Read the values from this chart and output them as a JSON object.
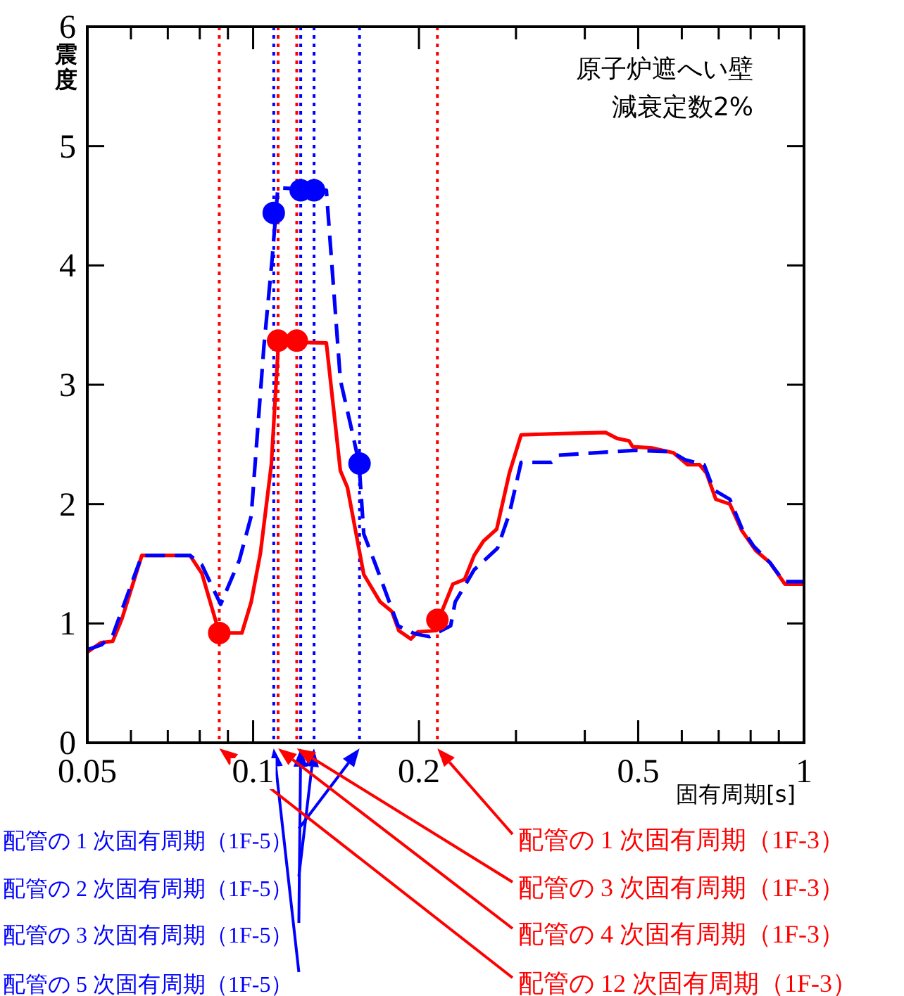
{
  "chart_data": {
    "type": "line",
    "title": "原子炉遮へい壁",
    "subtitle": "減衰定数2%",
    "xlabel": "固有周期[s]",
    "ylabel": "震度",
    "log": "x",
    "legend": false,
    "grid": false,
    "xlim": [
      0.05,
      1
    ],
    "ylim": [
      0,
      6
    ],
    "xticks": [
      0.05,
      {
        "value": 0.06,
        "label": null
      },
      {
        "value": 0.07,
        "label": null
      },
      {
        "value": 0.08,
        "label": null
      },
      {
        "value": 0.09,
        "label": null
      },
      0.1,
      0.2,
      {
        "value": 0.3,
        "label": null
      },
      {
        "value": 0.4,
        "label": null
      },
      0.5,
      {
        "value": 0.6,
        "label": null
      },
      {
        "value": 0.7,
        "label": null
      },
      {
        "value": 0.8,
        "label": null
      },
      {
        "value": 0.9,
        "label": null
      },
      1
    ],
    "yticks": [
      0,
      1,
      2,
      3,
      4,
      5,
      6
    ],
    "series": [
      {
        "type": "line",
        "color": "#ff0000",
        "line_style": "solid",
        "marker": "none",
        "x": [
          0.05,
          0.053,
          0.0556,
          0.0578,
          0.0628,
          0.0768,
          0.0807,
          0.0868,
          0.0954,
          0.0992,
          0.1031,
          0.1079,
          0.1112,
          0.1358,
          0.144,
          0.1483,
          0.1588,
          0.1701,
          0.1786,
          0.1839,
          0.1933,
          0.1991,
          0.2152,
          0.2174,
          0.2305,
          0.2421,
          0.2519,
          0.2619,
          0.2768,
          0.2918,
          0.3065,
          0.355,
          0.4363,
          0.458,
          0.4812,
          0.4886,
          0.5306,
          0.5795,
          0.6149,
          0.6461,
          0.6651,
          0.6917,
          0.7335,
          0.7706,
          0.8174,
          0.867,
          0.9229,
          1
        ],
        "values": [
          0.76,
          0.84,
          0.85,
          1.04,
          1.57,
          1.57,
          1.42,
          0.92,
          0.92,
          1.18,
          1.59,
          2.33,
          3.36,
          3.35,
          2.28,
          2.14,
          1.41,
          1.18,
          1.1,
          0.94,
          0.87,
          0.93,
          0.94,
          1.04,
          1.33,
          1.37,
          1.57,
          1.69,
          1.79,
          2.26,
          2.58,
          2.59,
          2.6,
          2.55,
          2.53,
          2.48,
          2.47,
          2.43,
          2.33,
          2.33,
          2.26,
          2.04,
          2.0,
          1.78,
          1.61,
          1.51,
          1.33,
          1.33
        ]
      },
      {
        "type": "line",
        "color": "#0000ff",
        "line_style": "dashed",
        "marker": "none",
        "x": [
          0.05,
          0.053,
          0.0556,
          0.0628,
          0.0768,
          0.0807,
          0.0873,
          0.0944,
          0.0992,
          0.1046,
          0.1083,
          0.11,
          0.1109,
          0.1358,
          0.144,
          0.1512,
          0.1557,
          0.1588,
          0.1669,
          0.1833,
          0.1951,
          0.203,
          0.209,
          0.2283,
          0.2327,
          0.2519,
          0.2777,
          0.2918,
          0.3065,
          0.3481,
          0.3585,
          0.4906,
          0.5741,
          0.6091,
          0.6586,
          0.6853,
          0.7335,
          0.7706,
          0.8093,
          0.867,
          0.9196,
          1
        ],
        "values": [
          0.78,
          0.82,
          0.9,
          1.57,
          1.57,
          1.49,
          1.16,
          1.53,
          1.9,
          3.32,
          4.06,
          4.45,
          4.65,
          4.63,
          3.04,
          2.61,
          2.34,
          1.75,
          1.49,
          0.98,
          0.92,
          0.9,
          0.89,
          0.98,
          1.18,
          1.45,
          1.63,
          1.92,
          2.35,
          2.35,
          2.41,
          2.45,
          2.44,
          2.37,
          2.33,
          2.12,
          2.04,
          1.8,
          1.65,
          1.51,
          1.35,
          1.35
        ]
      },
      {
        "type": "scatter",
        "color": "#ff0000",
        "marker": "circle",
        "x": [
          0.0868,
          0.111,
          0.12,
          0.216
        ],
        "values": [
          0.92,
          3.37,
          3.37,
          1.03
        ]
      },
      {
        "type": "scatter",
        "color": "#0000ff",
        "marker": "circle",
        "x": [
          0.109,
          0.122,
          0.129,
          0.156
        ],
        "values": [
          4.44,
          4.63,
          4.63,
          2.34
        ]
      }
    ],
    "ref_lines": [
      {
        "axis": "x",
        "value": 0.156,
        "label": "配管の 1 次固有周期（1F-5）",
        "color": "#0000ff",
        "line_style": "dotted"
      },
      {
        "axis": "x",
        "value": 0.129,
        "label": "配管の 2 次固有周期（1F-5）",
        "color": "#0000ff",
        "line_style": "dotted"
      },
      {
        "axis": "x",
        "value": 0.122,
        "label": "配管の 3 次固有周期（1F-5）",
        "color": "#0000ff",
        "line_style": "dotted"
      },
      {
        "axis": "x",
        "value": 0.109,
        "label": "配管の 5 次固有周期（1F-5）",
        "color": "#0000ff",
        "line_style": "dotted"
      },
      {
        "axis": "x",
        "value": 0.216,
        "label": "配管の 1 次固有周期（1F-3）",
        "color": "#ff0000",
        "line_style": "dotted"
      },
      {
        "axis": "x",
        "value": 0.12,
        "label": "配管の 3 次固有周期（1F-3）",
        "color": "#ff0000",
        "line_style": "dotted"
      },
      {
        "axis": "x",
        "value": 0.111,
        "label": "配管の 4 次固有周期（1F-3）",
        "color": "#ff0000",
        "line_style": "dotted"
      },
      {
        "axis": "x",
        "value": 0.0868,
        "label": "配管の 12 次固有周期（1F-3）",
        "color": "#ff0000",
        "line_style": "dotted"
      }
    ]
  }
}
